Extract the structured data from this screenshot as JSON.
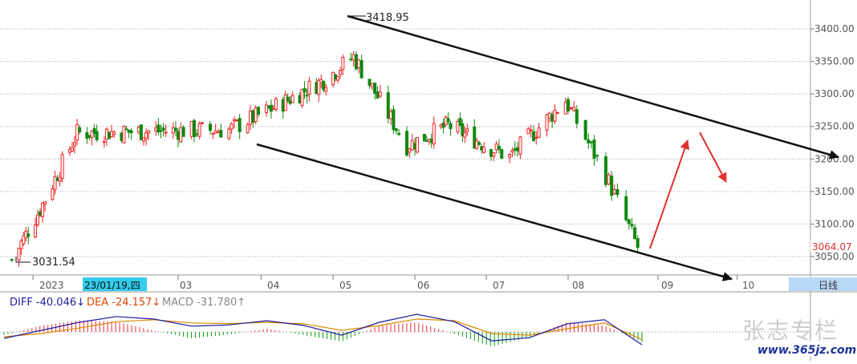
{
  "chart_data": [
    {
      "type": "candlestick",
      "title": "",
      "ylim": [
        3010,
        3435
      ],
      "y_ticks": [
        3050,
        3100,
        3150,
        3200,
        3250,
        3300,
        3350,
        3400
      ],
      "y_tick_labels": [
        "3050.00",
        "3100.00",
        "3150.00",
        "3200.00",
        "3250.00",
        "3300.00",
        "3350.00",
        "3400.00"
      ],
      "x_axis_labels": [
        {
          "text": "2023",
          "date": "2023-01-01"
        },
        {
          "text": "23/01/19,四",
          "date": "2023-01-19",
          "highlighted": true
        },
        {
          "text": "03",
          "date": "2023-03-01"
        },
        {
          "text": "04",
          "date": "2023-04-01"
        },
        {
          "text": "05",
          "date": "2023-05-01"
        },
        {
          "text": "06",
          "date": "2023-06-01"
        },
        {
          "text": "07",
          "date": "2023-07-01"
        },
        {
          "text": "08",
          "date": "2023-08-01"
        },
        {
          "text": "09",
          "date": "2023-09-01"
        },
        {
          "text": "10",
          "date": "2023-10-01"
        }
      ],
      "period_label": "日线",
      "current_price_label": "3064.07",
      "annotations": [
        {
          "text": "3418.95",
          "value": 3418.95
        },
        {
          "text": "3031.54",
          "value": 3031.54
        }
      ],
      "key_closes": [
        {
          "date": "2022-12-23",
          "close": 3045
        },
        {
          "date": "2023-01-04",
          "close": 3123
        },
        {
          "date": "2023-01-19",
          "close": 3240
        },
        {
          "date": "2023-03-20",
          "close": 3245
        },
        {
          "date": "2023-04-28",
          "close": 3323
        },
        {
          "date": "2023-05-09",
          "close": 3357
        },
        {
          "date": "2023-05-29",
          "close": 3221
        },
        {
          "date": "2023-06-15",
          "close": 3252
        },
        {
          "date": "2023-07-10",
          "close": 3203
        },
        {
          "date": "2023-07-31",
          "close": 3290
        },
        {
          "date": "2023-08-14",
          "close": 3175
        },
        {
          "date": "2023-08-25",
          "close": 3064.07
        }
      ],
      "colors": {
        "up": "#ee2222",
        "down": "#118811",
        "text_red": "#e03030",
        "blue_label": "#1e1e99"
      }
    },
    {
      "type": "macd",
      "legend": [
        {
          "text": "DIFF -40.046↓",
          "color": "#1e1e99"
        },
        {
          "text": "DEA -24.157↓",
          "color": "#dd4400"
        },
        {
          "text": "MACD -31.780↑",
          "color": "#888888"
        }
      ],
      "series": [
        {
          "name": "DIFF",
          "values": [
            -20,
            5,
            30,
            48,
            40,
            18,
            22,
            35,
            20,
            -10,
            30,
            55,
            32,
            -28,
            -18,
            25,
            38,
            -40
          ]
        },
        {
          "name": "DEA",
          "values": [
            -15,
            -5,
            12,
            32,
            38,
            28,
            26,
            30,
            25,
            5,
            20,
            40,
            35,
            -5,
            -10,
            10,
            28,
            -24
          ]
        }
      ]
    }
  ],
  "watermark": {
    "text": "张志专栏",
    "url": "www.365jz.com"
  }
}
